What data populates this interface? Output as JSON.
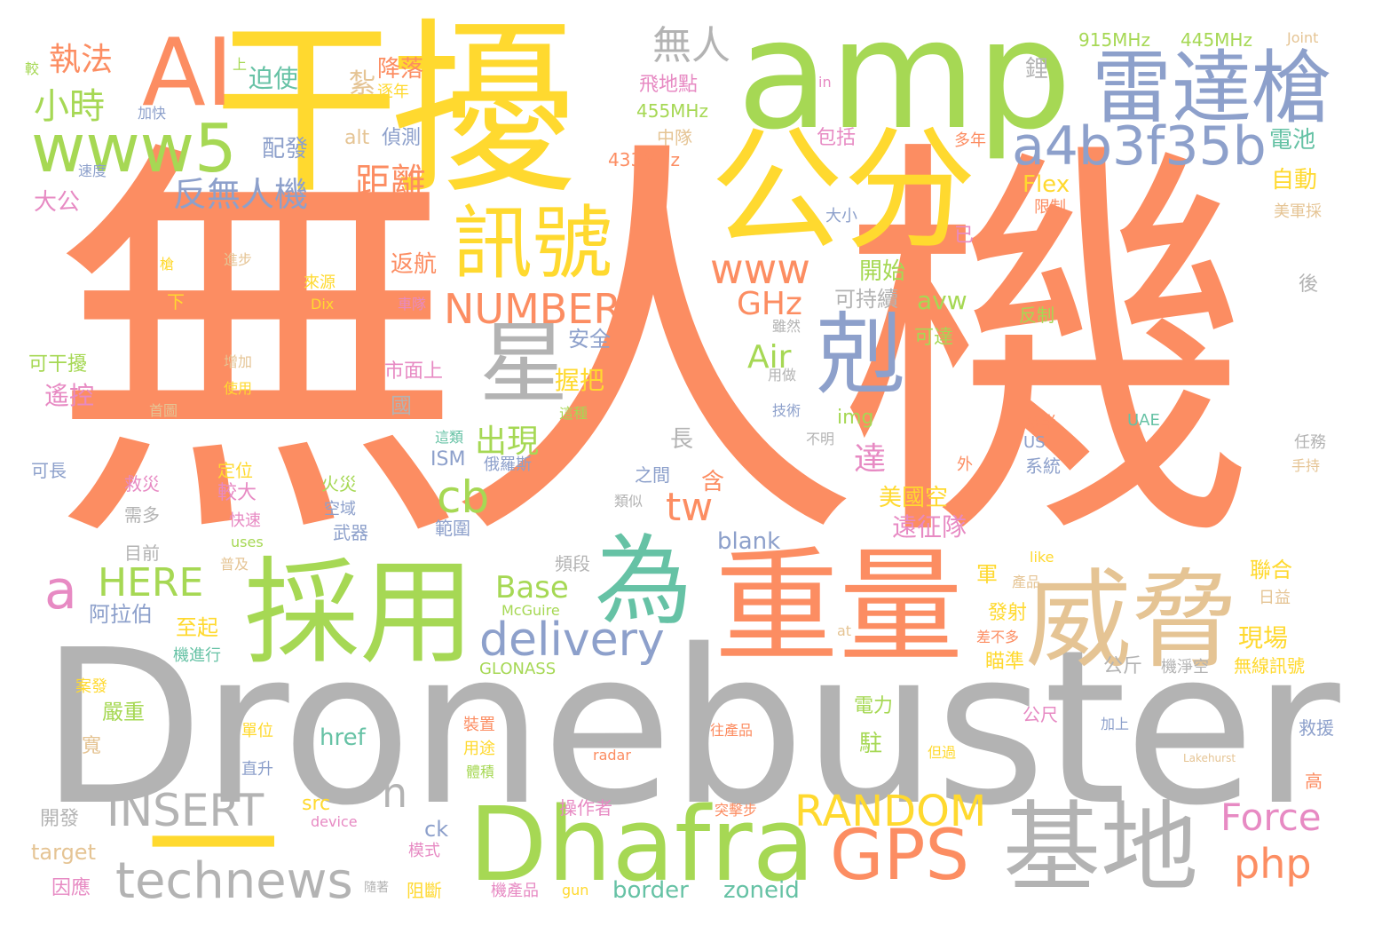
{
  "palette": {
    "orange": "#fc8d62",
    "green": "#a6d854",
    "yellow": "#ffd92f",
    "gray": "#b3b3b3",
    "blue": "#8da0cb",
    "teal": "#66c2a5",
    "pink": "#e78ac3",
    "tan": "#e5c494",
    "background": "#ffffff"
  },
  "words": [
    {
      "text": "無人機",
      "color": "orange"
    },
    {
      "text": "Dronebuster",
      "color": "gray"
    },
    {
      "text": "干擾",
      "color": "yellow"
    },
    {
      "text": "amp",
      "color": "green"
    },
    {
      "text": "公分",
      "color": "yellow"
    },
    {
      "text": "重量",
      "color": "orange"
    },
    {
      "text": "採用",
      "color": "green"
    },
    {
      "text": "威脅",
      "color": "tan"
    },
    {
      "text": "為",
      "color": "teal"
    },
    {
      "text": "AI",
      "color": "orange"
    },
    {
      "text": "雷達槍",
      "color": "blue"
    },
    {
      "text": "Dhafra",
      "color": "green"
    },
    {
      "text": "基地",
      "color": "gray"
    },
    {
      "text": "星",
      "color": "gray"
    },
    {
      "text": "剋",
      "color": "blue"
    },
    {
      "text": "訊號",
      "color": "yellow"
    },
    {
      "text": "www5",
      "color": "green"
    },
    {
      "text": "a4b3f35b",
      "color": "blue"
    },
    {
      "text": "GPS",
      "color": "orange"
    },
    {
      "text": "一",
      "color": "yellow"
    },
    {
      "text": "technews",
      "color": "gray"
    },
    {
      "text": "delivery",
      "color": "blue"
    },
    {
      "text": "www",
      "color": "orange"
    },
    {
      "text": "NUMBER",
      "color": "orange"
    },
    {
      "text": "RANDOM",
      "color": "yellow"
    },
    {
      "text": "INSERT",
      "color": "gray"
    },
    {
      "text": "Force",
      "color": "pink"
    },
    {
      "text": "php",
      "color": "orange"
    },
    {
      "text": "HERE",
      "color": "green"
    },
    {
      "text": "cb",
      "color": "green"
    },
    {
      "text": "tw",
      "color": "orange"
    },
    {
      "text": "a",
      "color": "pink"
    },
    {
      "text": "n",
      "color": "gray"
    },
    {
      "text": "無人",
      "color": "gray"
    },
    {
      "text": "反無人機",
      "color": "blue"
    },
    {
      "text": "距離",
      "color": "orange"
    },
    {
      "text": "小時",
      "color": "green"
    },
    {
      "text": "執法",
      "color": "orange"
    },
    {
      "text": "出現",
      "color": "green"
    },
    {
      "text": "GHz",
      "color": "orange"
    },
    {
      "text": "Air",
      "color": "green"
    },
    {
      "text": "Base",
      "color": "green"
    },
    {
      "text": "達",
      "color": "pink"
    },
    {
      "text": "915MHz",
      "color": "green"
    },
    {
      "text": "445MHz",
      "color": "green"
    },
    {
      "text": "Joint",
      "color": "tan"
    },
    {
      "text": "455MHz",
      "color": "green"
    },
    {
      "text": "433MHz",
      "color": "orange"
    },
    {
      "text": "降落",
      "color": "orange"
    },
    {
      "text": "飛地點",
      "color": "pink"
    },
    {
      "text": "中隊",
      "color": "tan"
    },
    {
      "text": "鋰",
      "color": "gray"
    },
    {
      "text": "電池",
      "color": "teal"
    },
    {
      "text": "自動",
      "color": "yellow"
    },
    {
      "text": "美軍採",
      "color": "tan"
    },
    {
      "text": "Flex",
      "color": "yellow"
    },
    {
      "text": "限制",
      "color": "orange"
    },
    {
      "text": "迫使",
      "color": "teal"
    },
    {
      "text": "配發",
      "color": "blue"
    },
    {
      "text": "偵測",
      "color": "blue"
    },
    {
      "text": "alt",
      "color": "tan"
    },
    {
      "text": "包括",
      "color": "pink"
    },
    {
      "text": "多年",
      "color": "orange"
    },
    {
      "text": "大小",
      "color": "blue"
    },
    {
      "text": "已",
      "color": "pink"
    },
    {
      "text": "in",
      "color": "pink"
    },
    {
      "text": "紮",
      "color": "tan"
    },
    {
      "text": "逐年",
      "color": "yellow"
    },
    {
      "text": "較",
      "color": "green"
    },
    {
      "text": "上",
      "color": "green"
    },
    {
      "text": "加快",
      "color": "blue"
    },
    {
      "text": "速度",
      "color": "blue"
    },
    {
      "text": "大公",
      "color": "pink"
    },
    {
      "text": "槍",
      "color": "yellow"
    },
    {
      "text": "進步",
      "color": "tan"
    },
    {
      "text": "下",
      "color": "yellow"
    },
    {
      "text": "來源",
      "color": "yellow"
    },
    {
      "text": "Dix",
      "color": "yellow"
    },
    {
      "text": "返航",
      "color": "orange"
    },
    {
      "text": "車隊",
      "color": "pink"
    },
    {
      "text": "開始",
      "color": "green"
    },
    {
      "text": "可持續",
      "color": "gray"
    },
    {
      "text": "avw",
      "color": "green"
    },
    {
      "text": "雖然",
      "color": "gray"
    },
    {
      "text": "可達",
      "color": "green"
    },
    {
      "text": "反制",
      "color": "green"
    },
    {
      "text": "後",
      "color": "gray"
    },
    {
      "text": "可干擾",
      "color": "green"
    },
    {
      "text": "增加",
      "color": "tan"
    },
    {
      "text": "使用",
      "color": "yellow"
    },
    {
      "text": "遙控",
      "color": "pink"
    },
    {
      "text": "首圖",
      "color": "tan"
    },
    {
      "text": "安全",
      "color": "blue"
    },
    {
      "text": "握把",
      "color": "yellow"
    },
    {
      "text": "市面上",
      "color": "pink"
    },
    {
      "text": "國",
      "color": "gray"
    },
    {
      "text": "img",
      "color": "green"
    },
    {
      "text": "用做",
      "color": "gray"
    },
    {
      "text": "技術",
      "color": "blue"
    },
    {
      "text": "這種",
      "color": "green"
    },
    {
      "text": "不明",
      "color": "gray"
    },
    {
      "text": "多半",
      "color": "orange"
    },
    {
      "text": "UAE",
      "color": "teal"
    },
    {
      "text": "US",
      "color": "blue"
    },
    {
      "text": "系統",
      "color": "blue"
    },
    {
      "text": "任務",
      "color": "gray"
    },
    {
      "text": "手持",
      "color": "tan"
    },
    {
      "text": "長",
      "color": "gray"
    },
    {
      "text": "這類",
      "color": "teal"
    },
    {
      "text": "ISM",
      "color": "blue"
    },
    {
      "text": "俄羅斯",
      "color": "blue"
    },
    {
      "text": "可長",
      "color": "blue"
    },
    {
      "text": "定位",
      "color": "yellow"
    },
    {
      "text": "救災",
      "color": "pink"
    },
    {
      "text": "較大",
      "color": "pink"
    },
    {
      "text": "火災",
      "color": "green"
    },
    {
      "text": "之間",
      "color": "blue"
    },
    {
      "text": "含",
      "color": "orange"
    },
    {
      "text": "類似",
      "color": "gray"
    },
    {
      "text": "外",
      "color": "orange"
    },
    {
      "text": "美國空",
      "color": "yellow"
    },
    {
      "text": "需多",
      "color": "gray"
    },
    {
      "text": "空域",
      "color": "blue"
    },
    {
      "text": "快速",
      "color": "pink"
    },
    {
      "text": "武器",
      "color": "blue"
    },
    {
      "text": "範圍",
      "color": "blue"
    },
    {
      "text": "遠征隊",
      "color": "pink"
    },
    {
      "text": "uses",
      "color": "green"
    },
    {
      "text": "目前",
      "color": "gray"
    },
    {
      "text": "普及",
      "color": "tan"
    },
    {
      "text": "blank",
      "color": "blue"
    },
    {
      "text": "頻段",
      "color": "gray"
    },
    {
      "text": "like",
      "color": "yellow"
    },
    {
      "text": "軍",
      "color": "yellow"
    },
    {
      "text": "產品",
      "color": "tan"
    },
    {
      "text": "聯合",
      "color": "yellow"
    },
    {
      "text": "日益",
      "color": "tan"
    },
    {
      "text": "阿拉伯",
      "color": "blue"
    },
    {
      "text": "McGuire",
      "color": "green"
    },
    {
      "text": "發射",
      "color": "yellow"
    },
    {
      "text": "至起",
      "color": "yellow"
    },
    {
      "text": "at",
      "color": "tan"
    },
    {
      "text": "差不多",
      "color": "orange"
    },
    {
      "text": "現場",
      "color": "yellow"
    },
    {
      "text": "機進行",
      "color": "teal"
    },
    {
      "text": "GLONASS",
      "color": "green"
    },
    {
      "text": "瞄準",
      "color": "yellow"
    },
    {
      "text": "公斤",
      "color": "gray"
    },
    {
      "text": "機淨空",
      "color": "gray"
    },
    {
      "text": "無線訊號",
      "color": "yellow"
    },
    {
      "text": "案發",
      "color": "yellow"
    },
    {
      "text": "嚴重",
      "color": "green"
    },
    {
      "text": "裝置",
      "color": "orange"
    },
    {
      "text": "電力",
      "color": "green"
    },
    {
      "text": "公尺",
      "color": "pink"
    },
    {
      "text": "加上",
      "color": "blue"
    },
    {
      "text": "救援",
      "color": "blue"
    },
    {
      "text": "寬",
      "color": "tan"
    },
    {
      "text": "單位",
      "color": "yellow"
    },
    {
      "text": "href",
      "color": "teal"
    },
    {
      "text": "用途",
      "color": "yellow"
    },
    {
      "text": "往產品",
      "color": "orange"
    },
    {
      "text": "駐",
      "color": "green"
    },
    {
      "text": "但過",
      "color": "yellow"
    },
    {
      "text": "直升",
      "color": "blue"
    },
    {
      "text": "radar",
      "color": "orange"
    },
    {
      "text": "Lakehurst",
      "color": "tan"
    },
    {
      "text": "高",
      "color": "orange"
    },
    {
      "text": "體積",
      "color": "green"
    },
    {
      "text": "開發",
      "color": "gray"
    },
    {
      "text": "src",
      "color": "yellow"
    },
    {
      "text": "操作者",
      "color": "pink"
    },
    {
      "text": "突擊步",
      "color": "orange"
    },
    {
      "text": "device",
      "color": "pink"
    },
    {
      "text": "ck",
      "color": "blue"
    },
    {
      "text": "target",
      "color": "tan"
    },
    {
      "text": "模式",
      "color": "pink"
    },
    {
      "text": "因應",
      "color": "pink"
    },
    {
      "text": "隨著",
      "color": "gray"
    },
    {
      "text": "阻斷",
      "color": "yellow"
    },
    {
      "text": "機產品",
      "color": "pink"
    },
    {
      "text": "gun",
      "color": "yellow"
    },
    {
      "text": "border",
      "color": "teal"
    },
    {
      "text": "zoneid",
      "color": "teal"
    }
  ]
}
